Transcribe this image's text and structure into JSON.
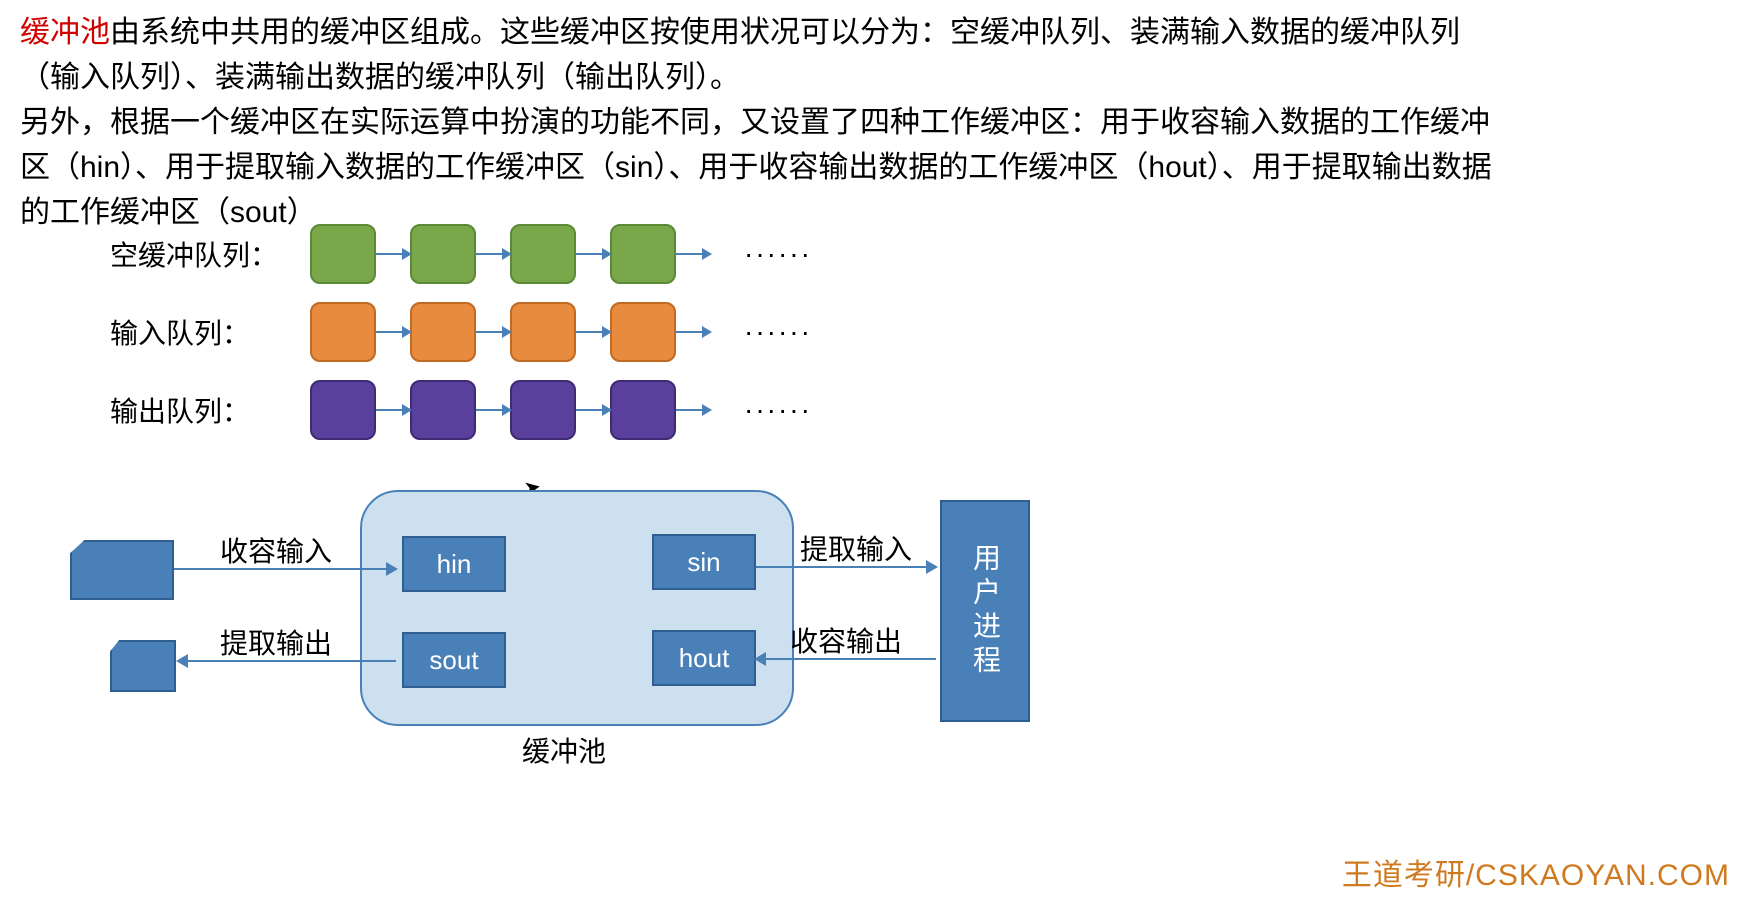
{
  "paragraph": {
    "highlight": "缓冲池",
    "line1_rest": "由系统中共用的缓冲区组成。这些缓冲区按使用状况可以分为：空缓冲队列、装满输入数据的缓冲队列（输入队列）、装满输出数据的缓冲队列（输出队列）。",
    "line2": "另外，根据一个缓冲区在实际运算中扮演的功能不同，又设置了四种工作缓冲区：用于收容输入数据的工作缓冲区（hin）、用于提取输入数据的工作缓冲区（sin）、用于收容输出数据的工作缓冲区（hout）、用于提取输出数据的工作缓冲区（sout）"
  },
  "queues": {
    "rows": [
      {
        "label": "空缓冲队列：",
        "box_fill": "#7aa74a",
        "box_border": "#5a8a36",
        "arrow_color": "#4a80b8",
        "count": 4,
        "ellipsis": "······"
      },
      {
        "label": "输入队列：",
        "box_fill": "#e88b3e",
        "box_border": "#c06a24",
        "arrow_color": "#4a80b8",
        "count": 4,
        "ellipsis": "······"
      },
      {
        "label": "输出队列：",
        "box_fill": "#5a3f9c",
        "box_border": "#3f2a74",
        "arrow_color": "#4a80b8",
        "count": 4,
        "ellipsis": "······"
      }
    ]
  },
  "diagram": {
    "pool_bg": "#cde0ef",
    "pool_border": "#4a80b8",
    "box_fill": "#4a80b8",
    "box_border": "#2f5f90",
    "work_buffers": {
      "hin": "hin",
      "sin": "sin",
      "sout": "sout",
      "hout": "hout"
    },
    "labels": {
      "receive_input": "收容输入",
      "extract_input": "提取输入",
      "extract_output": "提取输出",
      "receive_output": "收容输出",
      "pool": "缓冲池",
      "user_process": "用户进程"
    }
  },
  "watermark": "王道考研/CSKAOYAN.COM"
}
